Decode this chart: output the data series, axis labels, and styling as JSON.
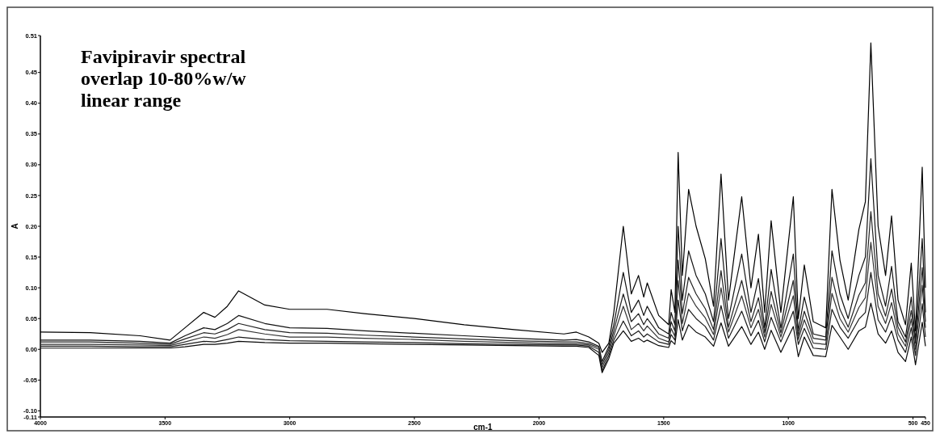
{
  "chart_data": {
    "type": "line",
    "title": "Favipiravir spectral overlap 10-80%w/w linear range",
    "xlabel": "cm-1",
    "ylabel": "A",
    "xlim": [
      4000,
      450
    ],
    "xticks": [
      4000,
      3500,
      3000,
      2500,
      2000,
      1500,
      1000,
      500,
      450
    ],
    "ylim": [
      -0.11,
      0.51
    ],
    "yticks": [
      {
        "value": -0.11,
        "label": "-0.11"
      },
      {
        "value": -0.1,
        "label": "-0.10"
      },
      {
        "value": -0.05,
        "label": "-0.05"
      },
      {
        "value": 0,
        "label": "0.00"
      },
      {
        "value": 0.05,
        "label": "0.05"
      },
      {
        "value": 0.1,
        "label": "0.10"
      },
      {
        "value": 0.15,
        "label": "0.15"
      },
      {
        "value": 0.2,
        "label": "0.20"
      },
      {
        "value": 0.25,
        "label": "0.25"
      },
      {
        "value": 0.3,
        "label": "0.30"
      },
      {
        "value": 0.35,
        "label": "0.35"
      },
      {
        "value": 0.4,
        "label": "0.40"
      },
      {
        "value": 0.45,
        "label": "0.45"
      },
      {
        "value": 0.51,
        "label": "0.51"
      }
    ],
    "grid": false,
    "marker": "none",
    "line_style": "solid",
    "x": [
      4000,
      3800,
      3600,
      3480,
      3420,
      3345,
      3300,
      3250,
      3205,
      3100,
      3000,
      2850,
      2700,
      2500,
      2300,
      2100,
      1900,
      1850,
      1800,
      1760,
      1747,
      1720,
      1700,
      1662,
      1630,
      1601,
      1580,
      1566,
      1520,
      1480,
      1470,
      1455,
      1442,
      1425,
      1400,
      1370,
      1333,
      1300,
      1270,
      1240,
      1187,
      1150,
      1120,
      1095,
      1069,
      1030,
      980,
      960,
      936,
      900,
      850,
      825,
      793,
      760,
      717,
      691,
      669,
      640,
      610,
      586,
      560,
      530,
      507,
      490,
      463,
      450
    ],
    "series": [
      {
        "color": "#000000",
        "values": [
          0.028,
          0.027,
          0.022,
          0.015,
          0.035,
          0.06,
          0.052,
          0.07,
          0.095,
          0.072,
          0.065,
          0.065,
          0.058,
          0.05,
          0.04,
          0.032,
          0.025,
          0.028,
          0.02,
          0.01,
          -0.005,
          0.01,
          0.06,
          0.2,
          0.09,
          0.12,
          0.085,
          0.108,
          0.055,
          0.04,
          0.097,
          0.06,
          0.32,
          0.12,
          0.26,
          0.2,
          0.147,
          0.07,
          0.285,
          0.08,
          0.248,
          0.1,
          0.187,
          0.06,
          0.209,
          0.06,
          0.248,
          0.05,
          0.137,
          0.045,
          0.035,
          0.26,
          0.145,
          0.08,
          0.195,
          0.24,
          0.498,
          0.2,
          0.12,
          0.217,
          0.08,
          0.04,
          0.14,
          0.03,
          0.296,
          0.1
        ]
      },
      {
        "color": "#111111",
        "values": [
          0.015,
          0.015,
          0.013,
          0.01,
          0.022,
          0.035,
          0.032,
          0.042,
          0.055,
          0.042,
          0.035,
          0.034,
          0.03,
          0.026,
          0.022,
          0.018,
          0.015,
          0.016,
          0.012,
          0.005,
          -0.02,
          0.005,
          0.04,
          0.125,
          0.06,
          0.08,
          0.055,
          0.07,
          0.035,
          0.025,
          0.06,
          0.04,
          0.2,
          0.08,
          0.16,
          0.12,
          0.09,
          0.045,
          0.18,
          0.05,
          0.155,
          0.06,
          0.115,
          0.035,
          0.13,
          0.035,
          0.155,
          0.03,
          0.085,
          0.025,
          0.02,
          0.16,
          0.09,
          0.05,
          0.12,
          0.15,
          0.31,
          0.12,
          0.07,
          0.135,
          0.045,
          0.02,
          0.085,
          0.015,
          0.18,
          0.06
        ]
      },
      {
        "color": "#222222",
        "values": [
          0.012,
          0.012,
          0.01,
          0.008,
          0.017,
          0.027,
          0.025,
          0.032,
          0.042,
          0.032,
          0.027,
          0.026,
          0.023,
          0.02,
          0.017,
          0.014,
          0.012,
          0.012,
          0.009,
          0.003,
          -0.025,
          0.0,
          0.03,
          0.09,
          0.045,
          0.058,
          0.04,
          0.05,
          0.025,
          0.018,
          0.045,
          0.03,
          0.145,
          0.058,
          0.117,
          0.09,
          0.066,
          0.032,
          0.128,
          0.036,
          0.112,
          0.045,
          0.084,
          0.027,
          0.094,
          0.027,
          0.112,
          0.022,
          0.062,
          0.018,
          0.015,
          0.117,
          0.065,
          0.036,
          0.088,
          0.108,
          0.224,
          0.09,
          0.054,
          0.098,
          0.036,
          0.012,
          0.063,
          0.01,
          0.133,
          0.045
        ]
      },
      {
        "color": "#333333",
        "values": [
          0.008,
          0.008,
          0.007,
          0.006,
          0.012,
          0.02,
          0.018,
          0.024,
          0.032,
          0.025,
          0.02,
          0.02,
          0.018,
          0.016,
          0.013,
          0.011,
          0.009,
          0.009,
          0.007,
          0.0,
          -0.03,
          -0.005,
          0.022,
          0.07,
          0.032,
          0.042,
          0.03,
          0.038,
          0.018,
          0.012,
          0.034,
          0.021,
          0.112,
          0.042,
          0.091,
          0.07,
          0.051,
          0.024,
          0.1,
          0.028,
          0.087,
          0.035,
          0.065,
          0.02,
          0.073,
          0.02,
          0.087,
          0.016,
          0.048,
          0.01,
          0.008,
          0.091,
          0.05,
          0.028,
          0.068,
          0.084,
          0.174,
          0.07,
          0.042,
          0.076,
          0.025,
          0.005,
          0.049,
          0.0,
          0.104,
          0.035
        ]
      },
      {
        "color": "#1a1a1a",
        "values": [
          0.005,
          0.005,
          0.004,
          0.004,
          0.008,
          0.013,
          0.012,
          0.016,
          0.02,
          0.016,
          0.014,
          0.013,
          0.012,
          0.011,
          0.009,
          0.008,
          0.007,
          0.007,
          0.005,
          -0.005,
          -0.035,
          -0.01,
          0.015,
          0.046,
          0.022,
          0.03,
          0.02,
          0.025,
          0.012,
          0.008,
          0.024,
          0.015,
          0.08,
          0.03,
          0.065,
          0.05,
          0.037,
          0.015,
          0.071,
          0.018,
          0.062,
          0.022,
          0.047,
          0.012,
          0.052,
          0.012,
          0.062,
          0.008,
          0.034,
          0.002,
          0.0,
          0.065,
          0.036,
          0.018,
          0.049,
          0.06,
          0.125,
          0.048,
          0.028,
          0.054,
          0.015,
          -0.005,
          0.035,
          -0.01,
          0.074,
          0.02
        ]
      },
      {
        "color": "#0a0a0a",
        "values": [
          0.002,
          0.002,
          0.002,
          0.002,
          0.004,
          0.008,
          0.008,
          0.01,
          0.013,
          0.011,
          0.01,
          0.01,
          0.009,
          0.008,
          0.007,
          0.006,
          0.005,
          0.005,
          0.003,
          -0.01,
          -0.038,
          -0.015,
          0.01,
          0.03,
          0.013,
          0.018,
          0.012,
          0.015,
          0.006,
          0.003,
          0.014,
          0.008,
          0.048,
          0.015,
          0.04,
          0.028,
          0.02,
          0.005,
          0.043,
          0.005,
          0.037,
          0.008,
          0.028,
          0.0,
          0.031,
          -0.005,
          0.037,
          -0.012,
          0.02,
          -0.01,
          -0.012,
          0.039,
          0.02,
          0.0,
          0.03,
          0.036,
          0.075,
          0.025,
          0.01,
          0.03,
          -0.005,
          -0.02,
          0.02,
          -0.025,
          0.044,
          0.005
        ]
      }
    ]
  }
}
